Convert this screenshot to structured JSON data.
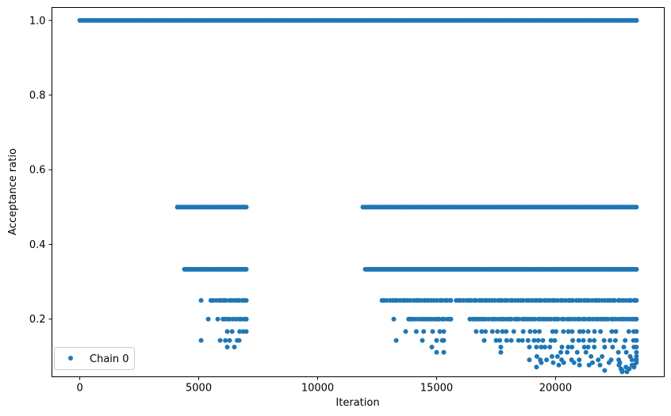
{
  "chart_data": {
    "type": "scatter",
    "title": "",
    "xlabel": "Iteration",
    "ylabel": "Acceptance ratio",
    "xlim": [
      -1170,
      24570
    ],
    "ylim": [
      0.0455,
      1.0345
    ],
    "xticks": [
      0,
      5000,
      10000,
      15000,
      20000
    ],
    "yticks": [
      0.2,
      0.4,
      0.6,
      0.8,
      1.0
    ],
    "xtick_labels": [
      "0",
      "5000",
      "10000",
      "15000",
      "20000"
    ],
    "ytick_labels": [
      "0.2",
      "0.4",
      "0.6",
      "0.8",
      "1.0"
    ],
    "grid": false,
    "legend_position": "lower-left",
    "series": [
      {
        "name": "Chain 0",
        "color": "#1f77b4",
        "marker": "circle",
        "bands": [
          {
            "y": 1.0,
            "x_ranges": [
              [
                0,
                23400
              ]
            ],
            "density": "continuous"
          },
          {
            "y": 0.5,
            "x_ranges": [
              [
                4100,
                7000
              ],
              [
                11900,
                23400
              ]
            ],
            "density": "continuous"
          },
          {
            "y": 0.3333,
            "x_ranges": [
              [
                4400,
                7000
              ],
              [
                12000,
                23400
              ]
            ],
            "density": "continuous"
          },
          {
            "y": 0.25,
            "x_ranges": [
              [
                5100,
                5100
              ],
              [
                5500,
                7000
              ],
              [
                12700,
                15600
              ],
              [
                15800,
                23400
              ]
            ],
            "density": "dense"
          },
          {
            "y": 0.2,
            "x_ranges": [
              [
                5400,
                5400
              ],
              [
                5800,
                5800
              ],
              [
                6000,
                7000
              ],
              [
                13200,
                13200
              ],
              [
                13800,
                15600
              ],
              [
                16400,
                23400
              ]
            ],
            "density": "dense"
          },
          {
            "y": 0.1667,
            "x_ranges": [
              [
                6200,
                7000
              ],
              [
                13700,
                15300
              ],
              [
                16600,
                23400
              ]
            ],
            "density": "medium"
          },
          {
            "y": 0.1429,
            "x_ranges": [
              [
                5100,
                5100
              ],
              [
                5900,
                6300
              ],
              [
                6600,
                6700
              ],
              [
                13300,
                13300
              ],
              [
                14400,
                14400
              ],
              [
                15000,
                15300
              ],
              [
                17000,
                23400
              ]
            ],
            "density": "medium"
          },
          {
            "y": 0.125,
            "x_ranges": [
              [
                6200,
                6500
              ],
              [
                14800,
                14800
              ],
              [
                17700,
                17700
              ],
              [
                18900,
                23400
              ]
            ],
            "density": "medium"
          },
          {
            "y": 0.1111,
            "x_ranges": [
              [
                15000,
                15300
              ],
              [
                17700,
                17700
              ],
              [
                19300,
                23400
              ]
            ],
            "density": "sparse"
          },
          {
            "y": 0.1,
            "x_ranges": [
              [
                18900,
                23400
              ]
            ],
            "density": "sparse"
          },
          {
            "y": 0.0909,
            "x_ranges": [
              [
                18900,
                23400
              ]
            ],
            "density": "sparse"
          },
          {
            "y": 0.0833,
            "x_ranges": [
              [
                19400,
                23400
              ]
            ],
            "density": "sparse"
          },
          {
            "y": 0.0769,
            "x_ranges": [
              [
                19800,
                23300
              ]
            ],
            "density": "sparse"
          },
          {
            "y": 0.0714,
            "x_ranges": [
              [
                19200,
                19200
              ],
              [
                22900,
                23300
              ]
            ],
            "density": "sparse"
          },
          {
            "y": 0.0667,
            "x_ranges": [
              [
                22700,
                23100
              ]
            ],
            "density": "sparse"
          },
          {
            "y": 0.0625,
            "x_ranges": [
              [
                22000,
                22800
              ]
            ],
            "density": "sparse"
          },
          {
            "y": 0.0588,
            "x_ranges": [
              [
                22800,
                23000
              ]
            ],
            "density": "sparse"
          }
        ]
      }
    ]
  }
}
